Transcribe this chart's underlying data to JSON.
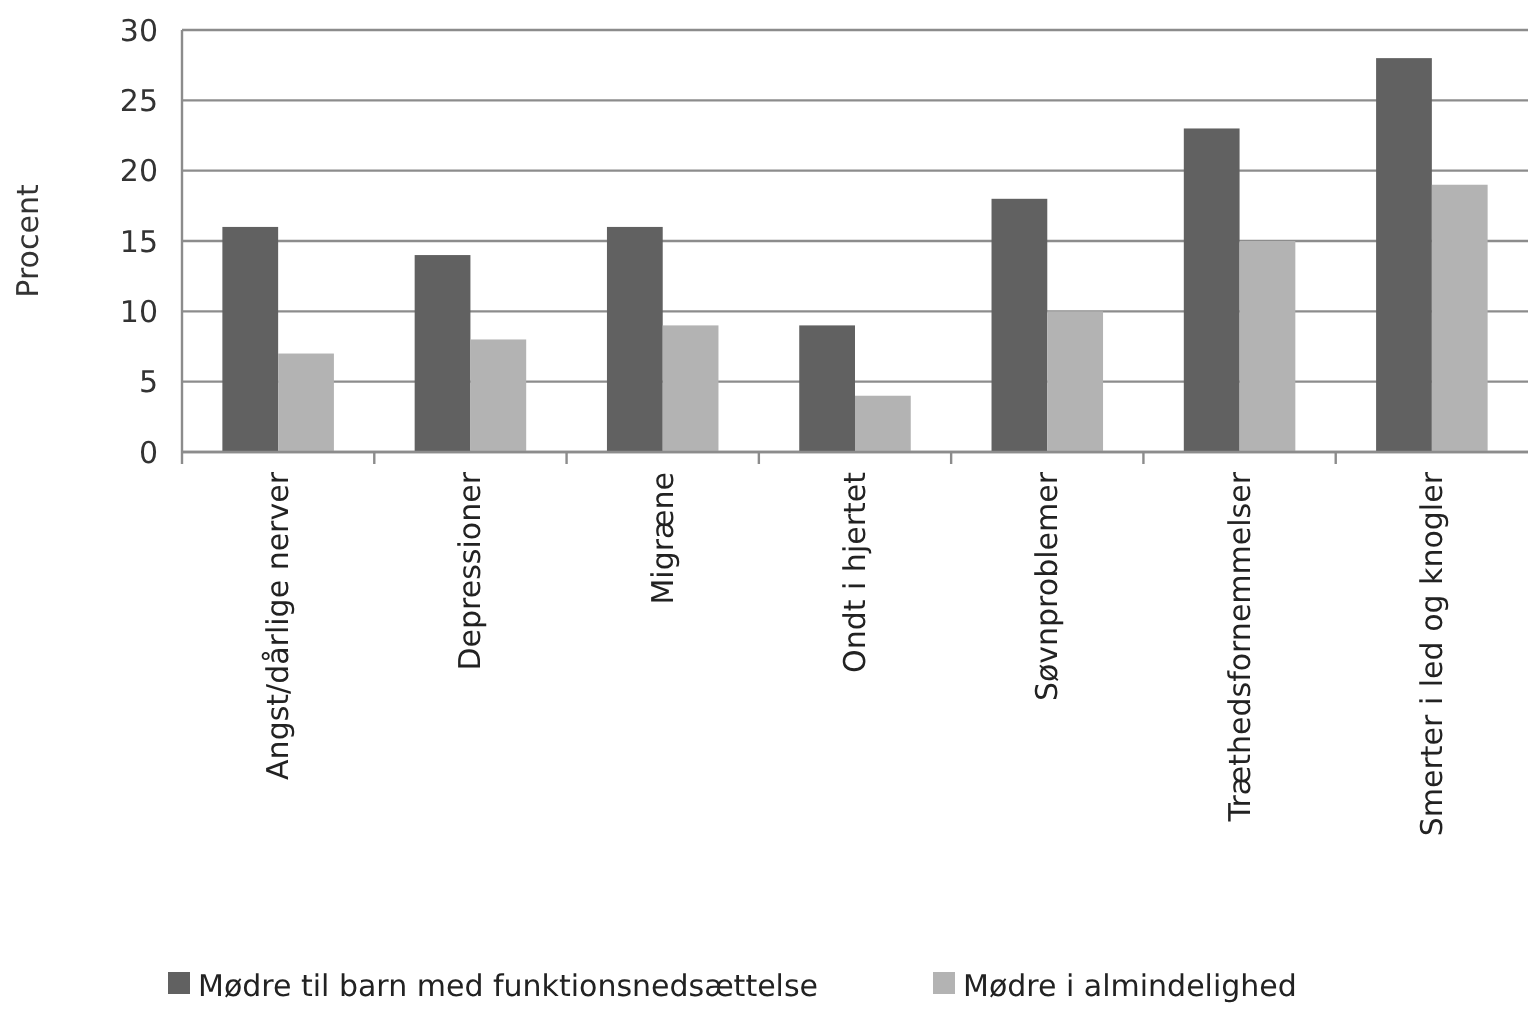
{
  "chart_data": {
    "type": "bar",
    "ylabel": "Procent",
    "categories": [
      "Angst/dårlige nerver",
      "Depressioner",
      "Migræne",
      "Ondt i hjertet",
      "Søvnproblemer",
      "Træthedsfornemmelser",
      "Smerter i led og knogler"
    ],
    "series": [
      {
        "name": "Mødre til barn med funktionsnedsættelse",
        "color": "#616161",
        "values": [
          16,
          14,
          16,
          9,
          18,
          23,
          28
        ]
      },
      {
        "name": "Mødre i almindelighed",
        "color": "#b3b3b3",
        "values": [
          7,
          8,
          9,
          4,
          10,
          15,
          19
        ]
      }
    ],
    "ylim": [
      0,
      30
    ],
    "yticks": [
      0,
      5,
      10,
      15,
      20,
      25,
      30
    ],
    "grid": "y",
    "legend": "bottom"
  }
}
